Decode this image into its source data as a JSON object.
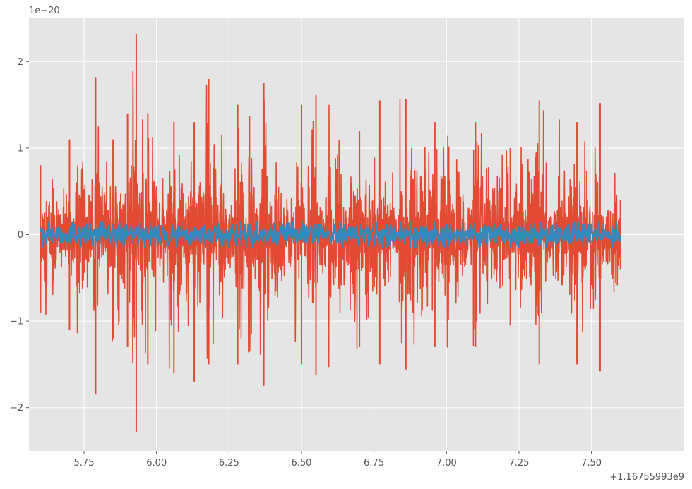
{
  "chart_data": {
    "type": "line",
    "title": "",
    "xlabel": "",
    "ylabel": "",
    "x_offset_label": "+1.16755993e9",
    "y_scale_label": "1e−20",
    "xlim": [
      5.56,
      7.82
    ],
    "ylim": [
      -2.5,
      2.5
    ],
    "x_ticks": [
      5.75,
      6.0,
      6.25,
      6.5,
      6.75,
      7.0,
      7.25,
      7.5
    ],
    "x_tick_labels": [
      "5.75",
      "6.00",
      "6.25",
      "6.50",
      "6.75",
      "7.00",
      "7.25",
      "7.50"
    ],
    "y_ticks": [
      -2,
      -1,
      0,
      1,
      2
    ],
    "y_tick_labels": [
      "−2",
      "−1",
      "0",
      "1",
      "2"
    ],
    "grid": true,
    "style": "ggplot",
    "x_range": [
      5.6,
      7.6
    ],
    "series": [
      {
        "color": "#E24A33",
        "typical_amplitude": 0.35,
        "envelope": [
          {
            "x": 5.6,
            "max": 0.8,
            "min": -0.9
          },
          {
            "x": 5.7,
            "max": 1.1,
            "min": -1.1
          },
          {
            "x": 5.79,
            "max": 1.82,
            "min": -1.85
          },
          {
            "x": 5.85,
            "max": 1.1,
            "min": -1.2
          },
          {
            "x": 5.9,
            "max": 1.4,
            "min": -1.3
          },
          {
            "x": 5.93,
            "max": 2.32,
            "min": -2.28
          },
          {
            "x": 5.97,
            "max": 1.4,
            "min": -1.5
          },
          {
            "x": 6.06,
            "max": 1.3,
            "min": -1.6
          },
          {
            "x": 6.13,
            "max": 1.3,
            "min": -1.7
          },
          {
            "x": 6.18,
            "max": 1.8,
            "min": -1.5
          },
          {
            "x": 6.28,
            "max": 1.5,
            "min": -1.5
          },
          {
            "x": 6.37,
            "max": 1.75,
            "min": -1.75
          },
          {
            "x": 6.5,
            "max": 1.5,
            "min": -1.5
          },
          {
            "x": 6.55,
            "max": 1.62,
            "min": -1.62
          },
          {
            "x": 6.7,
            "max": 1.2,
            "min": -1.3
          },
          {
            "x": 6.77,
            "max": 1.55,
            "min": -1.5
          },
          {
            "x": 6.86,
            "max": 1.57,
            "min": -1.56
          },
          {
            "x": 6.96,
            "max": 1.3,
            "min": -1.3
          },
          {
            "x": 7.1,
            "max": 1.3,
            "min": -1.3
          },
          {
            "x": 7.22,
            "max": 1.0,
            "min": -1.05
          },
          {
            "x": 7.32,
            "max": 1.55,
            "min": -1.5
          },
          {
            "x": 7.45,
            "max": 1.3,
            "min": -1.5
          },
          {
            "x": 7.53,
            "max": 1.52,
            "min": -1.58
          },
          {
            "x": 7.6,
            "max": 0.4,
            "min": -0.4
          }
        ]
      },
      {
        "color": "#348ABD",
        "typical_amplitude": 0.12,
        "envelope": [
          {
            "x": 5.6,
            "max": 0.15,
            "min": -0.15
          },
          {
            "x": 7.6,
            "max": 0.15,
            "min": -0.15
          }
        ]
      }
    ]
  }
}
